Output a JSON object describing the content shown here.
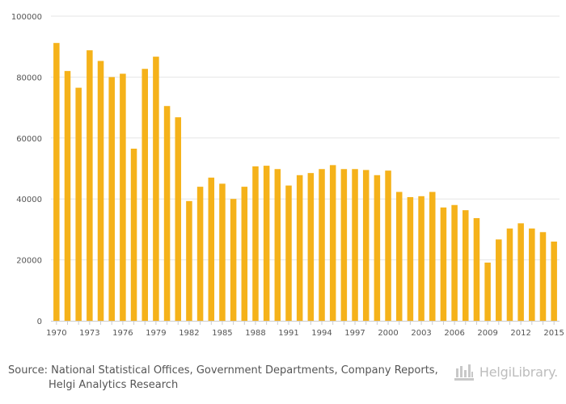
{
  "chart_data": {
    "type": "bar",
    "title": "",
    "xlabel": "",
    "ylabel": "",
    "ylim": [
      0,
      100000
    ],
    "yticks": [
      0,
      20000,
      40000,
      60000,
      80000,
      100000
    ],
    "ytick_labels": [
      "0",
      "20000",
      "40000",
      "60000",
      "80000",
      "100000"
    ],
    "xtick_labels": [
      "1970",
      "1973",
      "1976",
      "1979",
      "1982",
      "1985",
      "1988",
      "1991",
      "1994",
      "1997",
      "2000",
      "2003",
      "2006",
      "2009",
      "2012",
      "2015"
    ],
    "grid": true,
    "bar_color": "#F5B21A",
    "categories": [
      1970,
      1971,
      1972,
      1973,
      1974,
      1975,
      1976,
      1977,
      1978,
      1979,
      1980,
      1981,
      1982,
      1983,
      1984,
      1985,
      1986,
      1987,
      1988,
      1989,
      1990,
      1991,
      1992,
      1993,
      1994,
      1995,
      1996,
      1997,
      1998,
      1999,
      2000,
      2001,
      2002,
      2003,
      2004,
      2005,
      2006,
      2007,
      2008,
      2009,
      2010,
      2011,
      2012,
      2013,
      2014,
      2015
    ],
    "values": [
      91200,
      82000,
      76500,
      88800,
      85300,
      80000,
      81100,
      56500,
      82700,
      86700,
      70500,
      66800,
      39300,
      44000,
      47000,
      45000,
      40000,
      44000,
      50700,
      50900,
      49800,
      44400,
      47800,
      48500,
      49800,
      51100,
      49800,
      49800,
      49500,
      47800,
      49300,
      42300,
      40600,
      40900,
      42300,
      37200,
      38000,
      36300,
      33700,
      19100,
      26700,
      30300,
      32000,
      30300,
      29100,
      26000
    ]
  },
  "footer": {
    "source_line1": "Source: National Statistical Offices, Government Departments, Company Reports,",
    "source_line2": "Helgi Analytics Research",
    "logo_text": "HelgiLibrary."
  },
  "colors": {
    "grid": "#e6e6e6",
    "axis": "#cccccc",
    "text": "#555555"
  }
}
